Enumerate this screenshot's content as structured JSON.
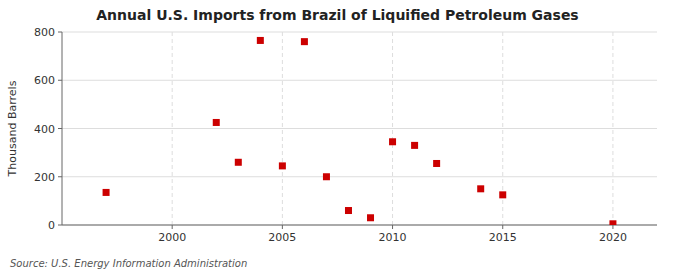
{
  "chart_data": {
    "type": "scatter",
    "title": "Annual U.S. Imports from Brazil of Liquified Petroleum Gases",
    "ylabel": "Thousand Barrels",
    "annotations": [
      "Source: U.S. Energy Information Administration"
    ],
    "x": [
      1997,
      2002,
      2003,
      2004,
      2005,
      2006,
      2007,
      2008,
      2009,
      2010,
      2011,
      2012,
      2014,
      2015,
      2020
    ],
    "values": [
      135,
      425,
      260,
      765,
      245,
      760,
      200,
      60,
      30,
      345,
      330,
      255,
      150,
      125,
      5
    ],
    "color": "#cc0000",
    "marker": "square",
    "xlim": [
      1995,
      2022
    ],
    "ylim": [
      0,
      800
    ],
    "xticks": [
      2000,
      2005,
      2010,
      2015,
      2020
    ],
    "yticks": [
      0,
      200,
      400,
      600,
      800
    ],
    "grid": true
  }
}
